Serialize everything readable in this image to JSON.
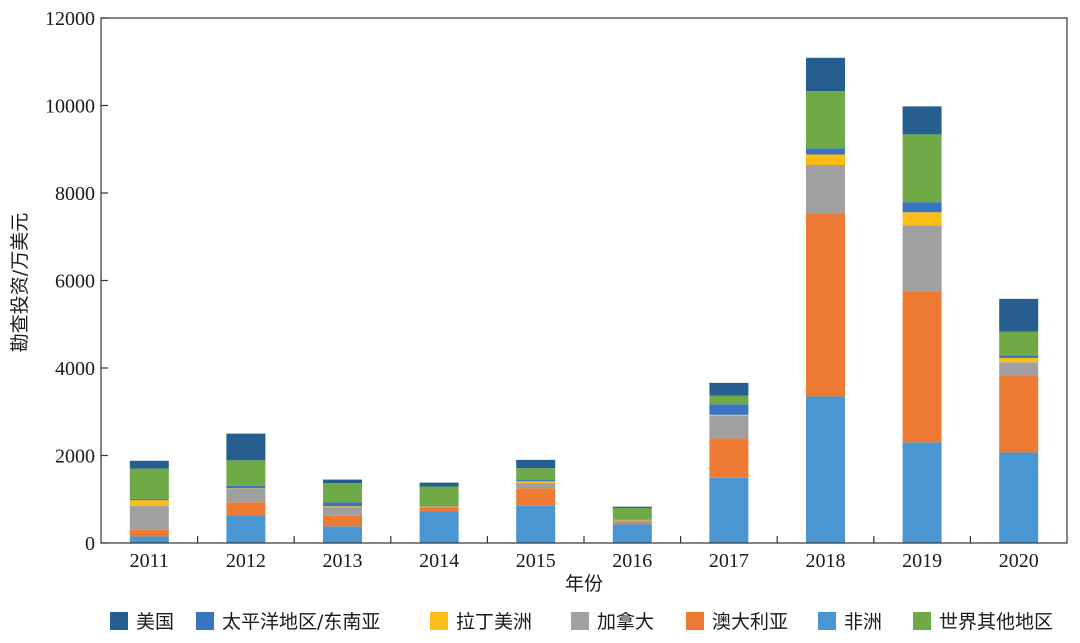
{
  "chart_data": {
    "type": "bar",
    "stacked": true,
    "xlabel": "年份",
    "ylabel": "勘查投资/万美元",
    "ylim": [
      0,
      12000
    ],
    "yticks": [
      0,
      2000,
      4000,
      6000,
      8000,
      10000,
      12000
    ],
    "grid": false,
    "legend_position": "bottom",
    "categories": [
      "2011",
      "2012",
      "2013",
      "2014",
      "2015",
      "2016",
      "2017",
      "2018",
      "2019",
      "2020"
    ],
    "series": [
      {
        "name": "非洲",
        "color": "#4a96d2",
        "values": [
          150,
          630,
          380,
          730,
          850,
          430,
          1490,
          3350,
          2300,
          2070
        ]
      },
      {
        "name": "澳大利亚",
        "color": "#ee7b33",
        "values": [
          150,
          300,
          240,
          90,
          400,
          40,
          900,
          4180,
          3450,
          1760
        ]
      },
      {
        "name": "加拿大",
        "color": "#a0a0a0",
        "values": [
          550,
          310,
          200,
          20,
          120,
          50,
          520,
          1110,
          1510,
          300
        ]
      },
      {
        "name": "拉丁美洲",
        "color": "#fbbd16",
        "values": [
          130,
          10,
          20,
          10,
          40,
          10,
          20,
          240,
          300,
          100
        ]
      },
      {
        "name": "太平洋地区/东南亚",
        "color": "#3a74c0",
        "values": [
          30,
          60,
          90,
          20,
          30,
          10,
          240,
          140,
          230,
          60
        ]
      },
      {
        "name": "世界其他地区",
        "color": "#70aa46",
        "values": [
          690,
          580,
          440,
          420,
          270,
          260,
          200,
          1310,
          1550,
          540
        ]
      },
      {
        "name": "美国",
        "color": "#265f8f",
        "values": [
          180,
          610,
          80,
          90,
          190,
          30,
          290,
          760,
          640,
          750
        ]
      }
    ],
    "legend_order": [
      "美国",
      "太平洋地区/东南亚",
      "拉丁美洲",
      "加拿大",
      "澳大利亚",
      "非洲",
      "世界其他地区"
    ]
  }
}
